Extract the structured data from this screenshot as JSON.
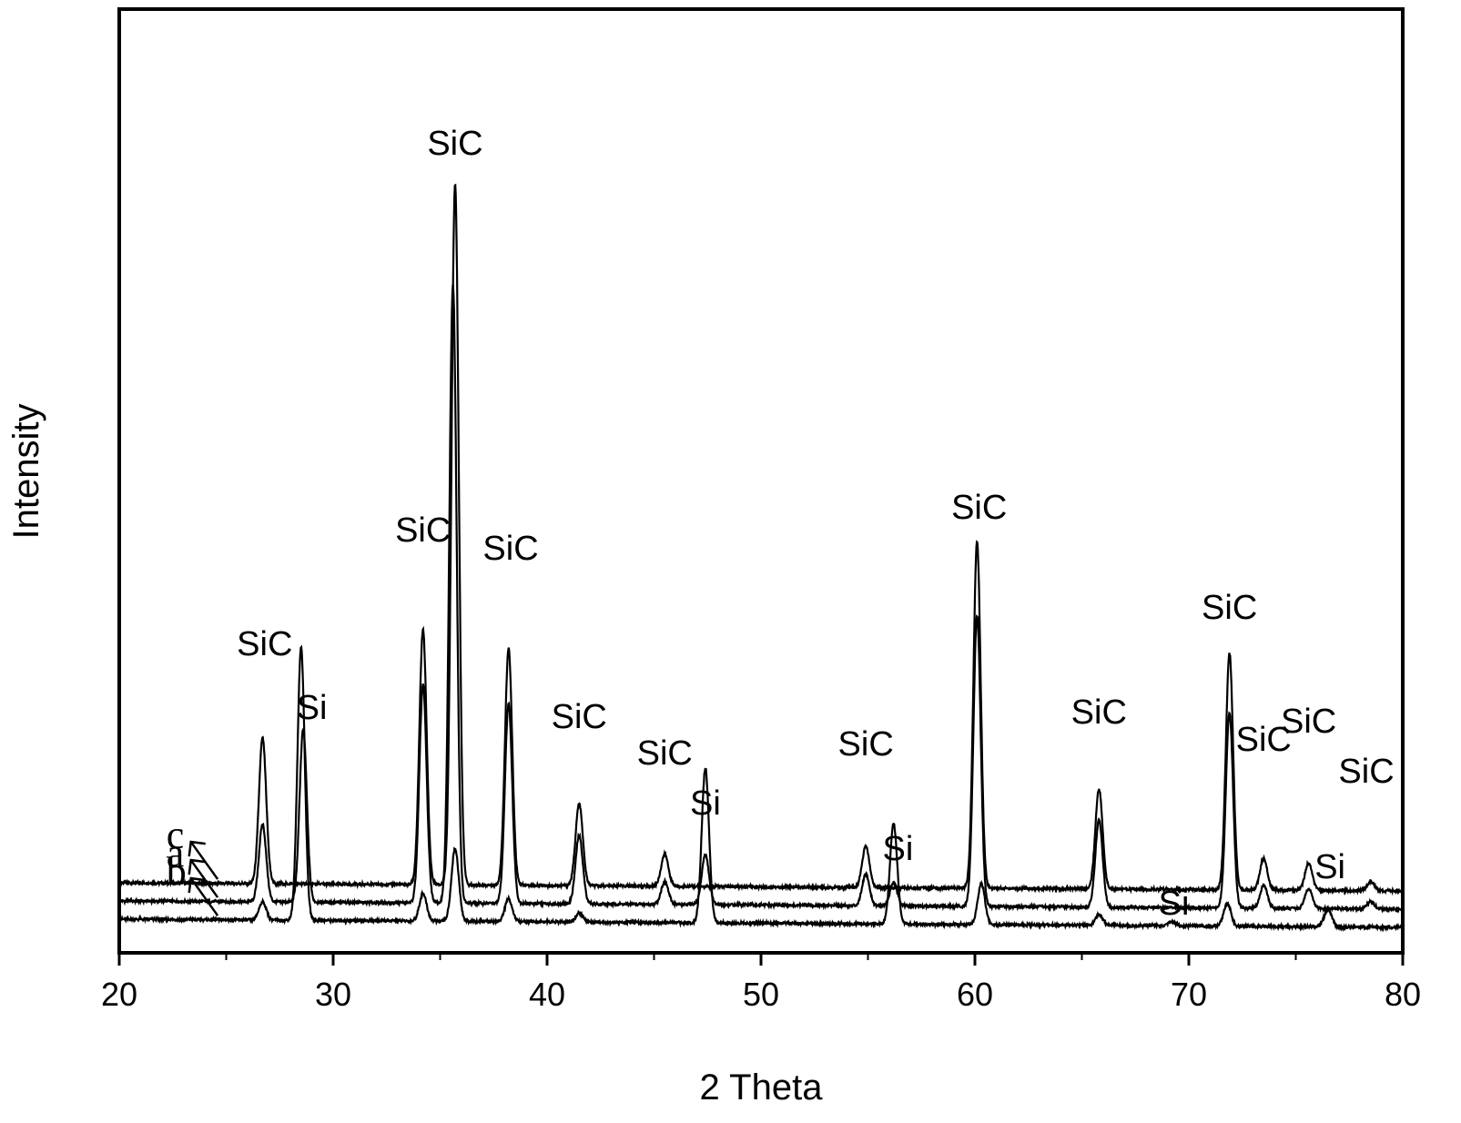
{
  "chart_data": {
    "type": "line",
    "title": "",
    "xlabel": "2 Theta",
    "ylabel": "Intensity",
    "xlim": [
      20,
      80
    ],
    "xticks": [
      20,
      30,
      40,
      50,
      60,
      70,
      80
    ],
    "yticks_shown": false,
    "grid": false,
    "series": [
      {
        "name": "c",
        "baseline": 60,
        "peaks": [
          {
            "x": 26.7,
            "h": 160
          },
          {
            "x": 28.6,
            "h": 0
          },
          {
            "x": 34.2,
            "h": 280
          },
          {
            "x": 35.7,
            "h": 770
          },
          {
            "x": 38.2,
            "h": 260
          },
          {
            "x": 41.5,
            "h": 90
          },
          {
            "x": 45.5,
            "h": 35
          },
          {
            "x": 54.9,
            "h": 45
          },
          {
            "x": 60.1,
            "h": 380
          },
          {
            "x": 65.8,
            "h": 110
          },
          {
            "x": 71.9,
            "h": 260
          },
          {
            "x": 73.5,
            "h": 35
          },
          {
            "x": 75.6,
            "h": 30
          },
          {
            "x": 78.5,
            "h": 10
          }
        ]
      },
      {
        "name": "a",
        "baseline": 40,
        "peaks": [
          {
            "x": 26.7,
            "h": 85
          },
          {
            "x": 28.6,
            "h": 190
          },
          {
            "x": 34.2,
            "h": 240
          },
          {
            "x": 35.6,
            "h": 680
          },
          {
            "x": 38.2,
            "h": 220
          },
          {
            "x": 41.5,
            "h": 75
          },
          {
            "x": 45.5,
            "h": 25
          },
          {
            "x": 47.4,
            "h": 55
          },
          {
            "x": 54.9,
            "h": 35
          },
          {
            "x": 56.2,
            "h": 25
          },
          {
            "x": 60.1,
            "h": 320
          },
          {
            "x": 65.8,
            "h": 95
          },
          {
            "x": 71.9,
            "h": 215
          },
          {
            "x": 73.5,
            "h": 25
          },
          {
            "x": 75.6,
            "h": 22
          },
          {
            "x": 78.5,
            "h": 8
          }
        ]
      },
      {
        "name": "b",
        "baseline": 20,
        "peaks": [
          {
            "x": 26.7,
            "h": 20
          },
          {
            "x": 28.5,
            "h": 300
          },
          {
            "x": 34.2,
            "h": 30
          },
          {
            "x": 35.7,
            "h": 80
          },
          {
            "x": 38.2,
            "h": 25
          },
          {
            "x": 41.5,
            "h": 10
          },
          {
            "x": 47.4,
            "h": 170
          },
          {
            "x": 56.2,
            "h": 110
          },
          {
            "x": 60.3,
            "h": 45
          },
          {
            "x": 65.8,
            "h": 12
          },
          {
            "x": 69.2,
            "h": 5
          },
          {
            "x": 71.8,
            "h": 25
          },
          {
            "x": 76.5,
            "h": 20
          }
        ]
      }
    ],
    "annotations": [
      {
        "text": "SiC",
        "x": 35.7,
        "level": 860
      },
      {
        "text": "SiC",
        "x": 34.2,
        "level": 435
      },
      {
        "text": "SiC",
        "x": 38.3,
        "level": 415
      },
      {
        "text": "SiC",
        "x": 26.8,
        "level": 310
      },
      {
        "text": "Si",
        "x": 29.0,
        "level": 240
      },
      {
        "text": "SiC",
        "x": 41.5,
        "level": 230
      },
      {
        "text": "SiC",
        "x": 45.5,
        "level": 190
      },
      {
        "text": "Si",
        "x": 47.4,
        "level": 135
      },
      {
        "text": "SiC",
        "x": 54.9,
        "level": 200
      },
      {
        "text": "Si",
        "x": 56.4,
        "level": 85
      },
      {
        "text": "SiC",
        "x": 60.2,
        "level": 460
      },
      {
        "text": "SiC",
        "x": 65.8,
        "level": 235
      },
      {
        "text": "Si",
        "x": 69.3,
        "level": 25
      },
      {
        "text": "SiC",
        "x": 71.9,
        "level": 350
      },
      {
        "text": "SiC",
        "x": 73.5,
        "level": 205
      },
      {
        "text": "SiC",
        "x": 75.6,
        "level": 225
      },
      {
        "text": "SiC",
        "x": 78.3,
        "level": 170
      },
      {
        "text": "Si",
        "x": 76.6,
        "level": 65
      }
    ]
  }
}
